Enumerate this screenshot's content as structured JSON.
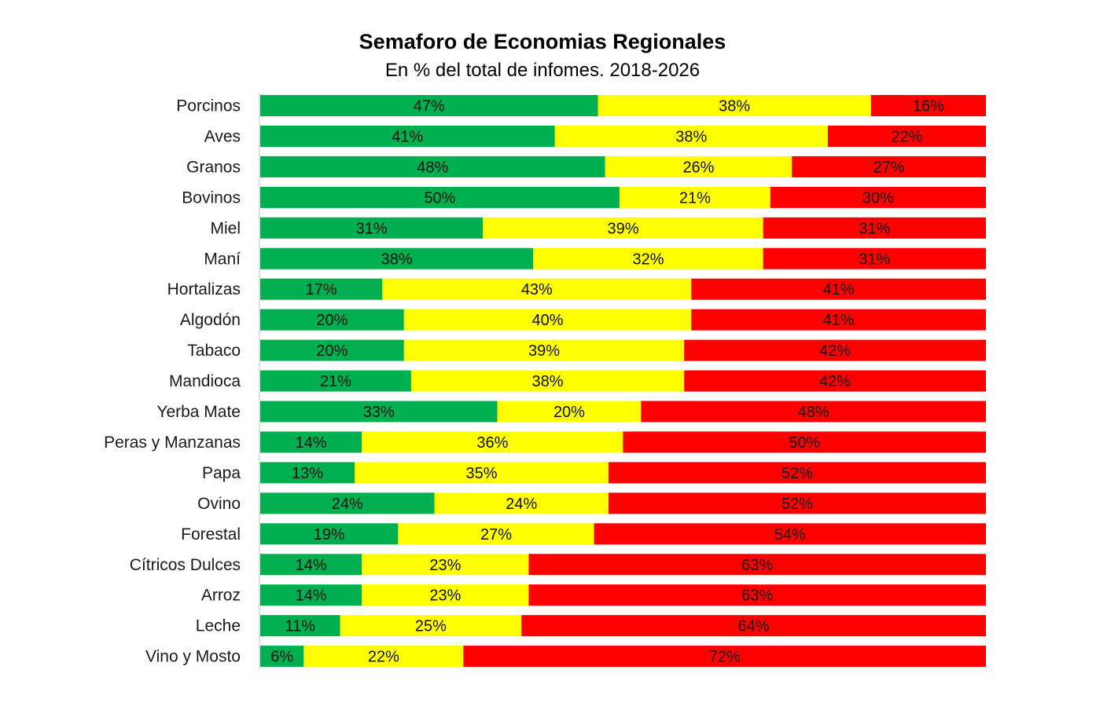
{
  "chart_data": {
    "type": "bar",
    "stacked": true,
    "orientation": "horizontal",
    "title": "Semaforo de Economias Regionales",
    "subtitle": "En % del total de infomes. 2018-2026",
    "categories": [
      "Porcinos",
      "Aves",
      "Granos",
      "Bovinos",
      "Miel",
      "Maní",
      "Hortalizas",
      "Algodón",
      "Tabaco",
      "Mandioca",
      "Yerba Mate",
      "Peras y Manzanas",
      "Papa",
      "Ovino",
      "Forestal",
      "Cítricos Dulces",
      "Arroz",
      "Leche",
      "Vino y Mosto"
    ],
    "series": [
      {
        "color": "#00b050",
        "values": [
          47,
          41,
          48,
          50,
          31,
          38,
          17,
          20,
          20,
          21,
          33,
          14,
          13,
          24,
          19,
          14,
          14,
          11,
          6
        ]
      },
      {
        "color": "#ffff00",
        "values": [
          38,
          38,
          26,
          21,
          39,
          32,
          43,
          40,
          39,
          38,
          20,
          36,
          35,
          24,
          27,
          23,
          23,
          25,
          22
        ]
      },
      {
        "color": "#ff0000",
        "values": [
          16,
          22,
          27,
          30,
          31,
          31,
          41,
          41,
          42,
          42,
          48,
          50,
          52,
          52,
          54,
          63,
          63,
          64,
          72
        ]
      }
    ],
    "value_format": "%"
  }
}
